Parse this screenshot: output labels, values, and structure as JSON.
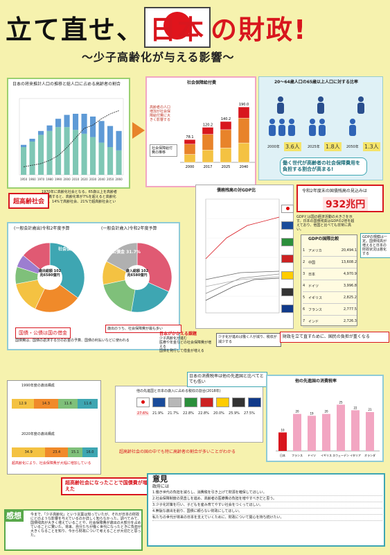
{
  "header": {
    "title_a": "立て直せ、",
    "title_b": "日本",
    "title_c": "の財政!",
    "subtitle": "〜少子高齢化が与える影響〜"
  },
  "sec1": {
    "chart_title": "日本の将来推計人口の推移と総人口に占める高齢者の割合",
    "label": "超高齢社会",
    "note": "1970年に高齢化社会となる。65歳以上を高齢者と定義すると、高齢化率が7%を超えると高齢化社会、14%で高齢社会、21%で超高齢社会という",
    "chart_data": {
      "type": "bar",
      "categories": [
        "1950",
        "1960",
        "1970",
        "1980",
        "1990",
        "2000",
        "2010",
        "2020",
        "2030",
        "2040",
        "2050",
        "2060"
      ],
      "series": [
        {
          "name": "15-64",
          "values": [
            5000,
            6000,
            7200,
            7900,
            8600,
            8600,
            8100,
            7400,
            6800,
            5800,
            5000,
            4400
          ]
        },
        {
          "name": "65+",
          "values": [
            400,
            500,
            700,
            1000,
            1500,
            2200,
            2900,
            3600,
            3700,
            3900,
            3800,
            3500
          ]
        }
      ],
      "ratio_line": [
        5,
        6,
        7,
        9,
        12,
        17,
        23,
        29,
        31,
        35,
        38,
        40
      ]
    }
  },
  "sec2": {
    "title": "社会保障給付費",
    "left_note": "高齢者の人口増加が社会保障給付費に大きく影響する",
    "legend": [
      "医療",
      "年金",
      "福祉その他"
    ],
    "box_note": "社会保障給付費の推移",
    "chart_data": {
      "type": "bar",
      "categories": [
        "2000",
        "2017",
        "2025",
        "2040"
      ],
      "totals": [
        "78.1",
        "120.2",
        "140.2",
        "190.0"
      ]
    }
  },
  "sec3": {
    "title": "20〜64歳人口の65歳以上人口に対する比率",
    "years": [
      "2000年",
      "2025年",
      "2050年"
    ],
    "ratios": [
      "3.6人",
      "1.8人",
      "1.3人"
    ],
    "message": "働く世代が高齢者の社会保障費用を負担する割合が高まる!"
  },
  "debt": {
    "chart_title": "債務残高の対GDP比",
    "amount_label": "令和2年度末の国債残高の見込みは",
    "amount": "932兆円",
    "note": "GDPとは国の経済活動の大きさを示す。日本の国債残高はGDPの2倍を超えており、他国と比べても非常に高い。",
    "rank_title": "GDPの国際比較",
    "side_note": "GDPの規模は一定。国債残高が増えると日本の財政状況は悪化する",
    "gdp_rows": [
      {
        "rank": "1",
        "country": "アメリカ",
        "value": "20,494.1"
      },
      {
        "rank": "2",
        "country": "中国",
        "value": "13,608.2"
      },
      {
        "rank": "3",
        "country": "日本",
        "value": "4,970.9"
      },
      {
        "rank": "4",
        "country": "ドイツ",
        "value": "3,996.8"
      },
      {
        "rank": "5",
        "country": "イギリス",
        "value": "2,825.2"
      },
      {
        "rank": "6",
        "country": "フランス",
        "value": "2,777.5"
      },
      {
        "rank": "7",
        "country": "インド",
        "value": "2,726.3"
      }
    ]
  },
  "budget": {
    "left_title": "(一般会計歳出)令和2年度予算",
    "right_title": "(一般会計歳入)令和2年度予算",
    "left_center": "歳出総額 102兆6580億円",
    "right_center": "歳入総額 102兆6580億円",
    "left_label": "社会保障",
    "right_label": "公債金",
    "left_pct": "35.0%",
    "right_pct": "31.7%",
    "note_a": "国債・公債は国の借金",
    "note_b": "歳出のうち、社会保障費が最も多い",
    "note_c": "国債費は、国債の返済する分のお金の予算、国債の利払いなどに使われる"
  },
  "mid": {
    "issue_title": "日本がかかえる課題",
    "issue_1": "少子高齢化が進む",
    "issue_2": "医療や年金などの社会保障費が増える",
    "issue_3": "国債を発行して借金が増える",
    "effect_1": "少子化が進めば働く人が減り、税収が減少する",
    "result": "財政を立て直すために、国民の負担が重くなる",
    "tax_note": "日本の消費税率は他の先進国と比べてとても低い",
    "world_title": "他の先進国と日本の比較",
    "burden": "国民負担率"
  },
  "tax_chart": {
    "title": "他の先進国の消費税率",
    "chart_data": {
      "type": "bar",
      "categories": [
        "日本",
        "フランス",
        "ドイツ",
        "イギリス",
        "スウェーデン",
        "イタリア",
        "オランダ"
      ],
      "values": [
        10,
        20,
        19,
        20,
        25,
        22,
        21
      ]
    }
  },
  "ratio_table": {
    "title": "他の先進国と日本の歳入に占める税収の割合(2018年)",
    "values": [
      "27.6%",
      "21.9%",
      "21.7%",
      "22.8%",
      "22.8%",
      "20.0%",
      "25.9%",
      "27.5%"
    ],
    "caption": "超高齢社会の国の中でも特に高齢者の割合が多いことがわかる"
  },
  "fiscal": {
    "title_1": "1990年度の歳出構成",
    "title_2": "2020年度の歳出構成",
    "vals_1": [
      "12.9",
      "14.3",
      "11.6",
      "11.6"
    ],
    "vals_2": [
      "34.9",
      "23.4",
      "15.1",
      "16.0"
    ],
    "message": "超高齢社会になったことで国債費が増えた",
    "note": "超高齢化により、社会保障費が大幅に増加している"
  },
  "opinion": {
    "title": "意見",
    "lead": "政府には",
    "lines": [
      "1.働き世代の負担を減らし、消費税を引き上げて財源を確保してほしい。",
      "2.社会保障制度の見直しを進め、高齢者の医療費の負担を増やすべきだと思う。",
      "3.少子化対策を行い、子どもを産み育てやすい社会をつくってほしい。",
      "4.無駄な歳出を削り、国債に頼らない財政にしてほしい。",
      "私たちの世代が将来の日本を支えていくために、財政について関心を持ち続けたい。"
    ]
  },
  "impression": {
    "title": "感想",
    "text": "今まで、「少子高齢化」という言葉は知っていたが、それが日本の財政にどのような影響を与えているのか詳しく知らなかった。調べてみて、国債残高が大きく増えていることや、社会保障費が歳出の大部分を占めていることに驚いた。将来、自分たちが働く世代になったときに負担が大きくなることを知り、今から財政について考えることが大切だと思った。"
  },
  "colors": {
    "bg": "#f6f2ae",
    "red": "#d8161e",
    "green": "#58a84a",
    "teal": "#3ea6b2",
    "pink": "#f2a6c2",
    "blue": "#2f64b6"
  }
}
